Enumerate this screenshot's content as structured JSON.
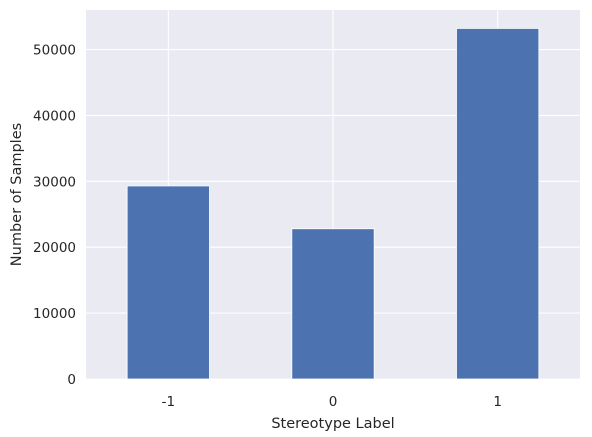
{
  "chart_data": {
    "type": "bar",
    "title": "",
    "xlabel": "Stereotype Label",
    "ylabel": "Number of Samples",
    "categories": [
      "-1",
      "0",
      "1"
    ],
    "values": [
      29300,
      22800,
      53200
    ],
    "ylim": [
      0,
      56000
    ],
    "yticks": [
      0,
      10000,
      20000,
      30000,
      40000,
      50000
    ],
    "ytick_labels": [
      "0",
      "10000",
      "20000",
      "30000",
      "40000",
      "50000"
    ],
    "grid": true,
    "legend": "none",
    "style": "seaborn-darkgrid"
  },
  "colors": {
    "bar": "#4c72b0",
    "plot_background": "#eaeaf2",
    "grid": "#ffffff",
    "text": "#262626"
  }
}
